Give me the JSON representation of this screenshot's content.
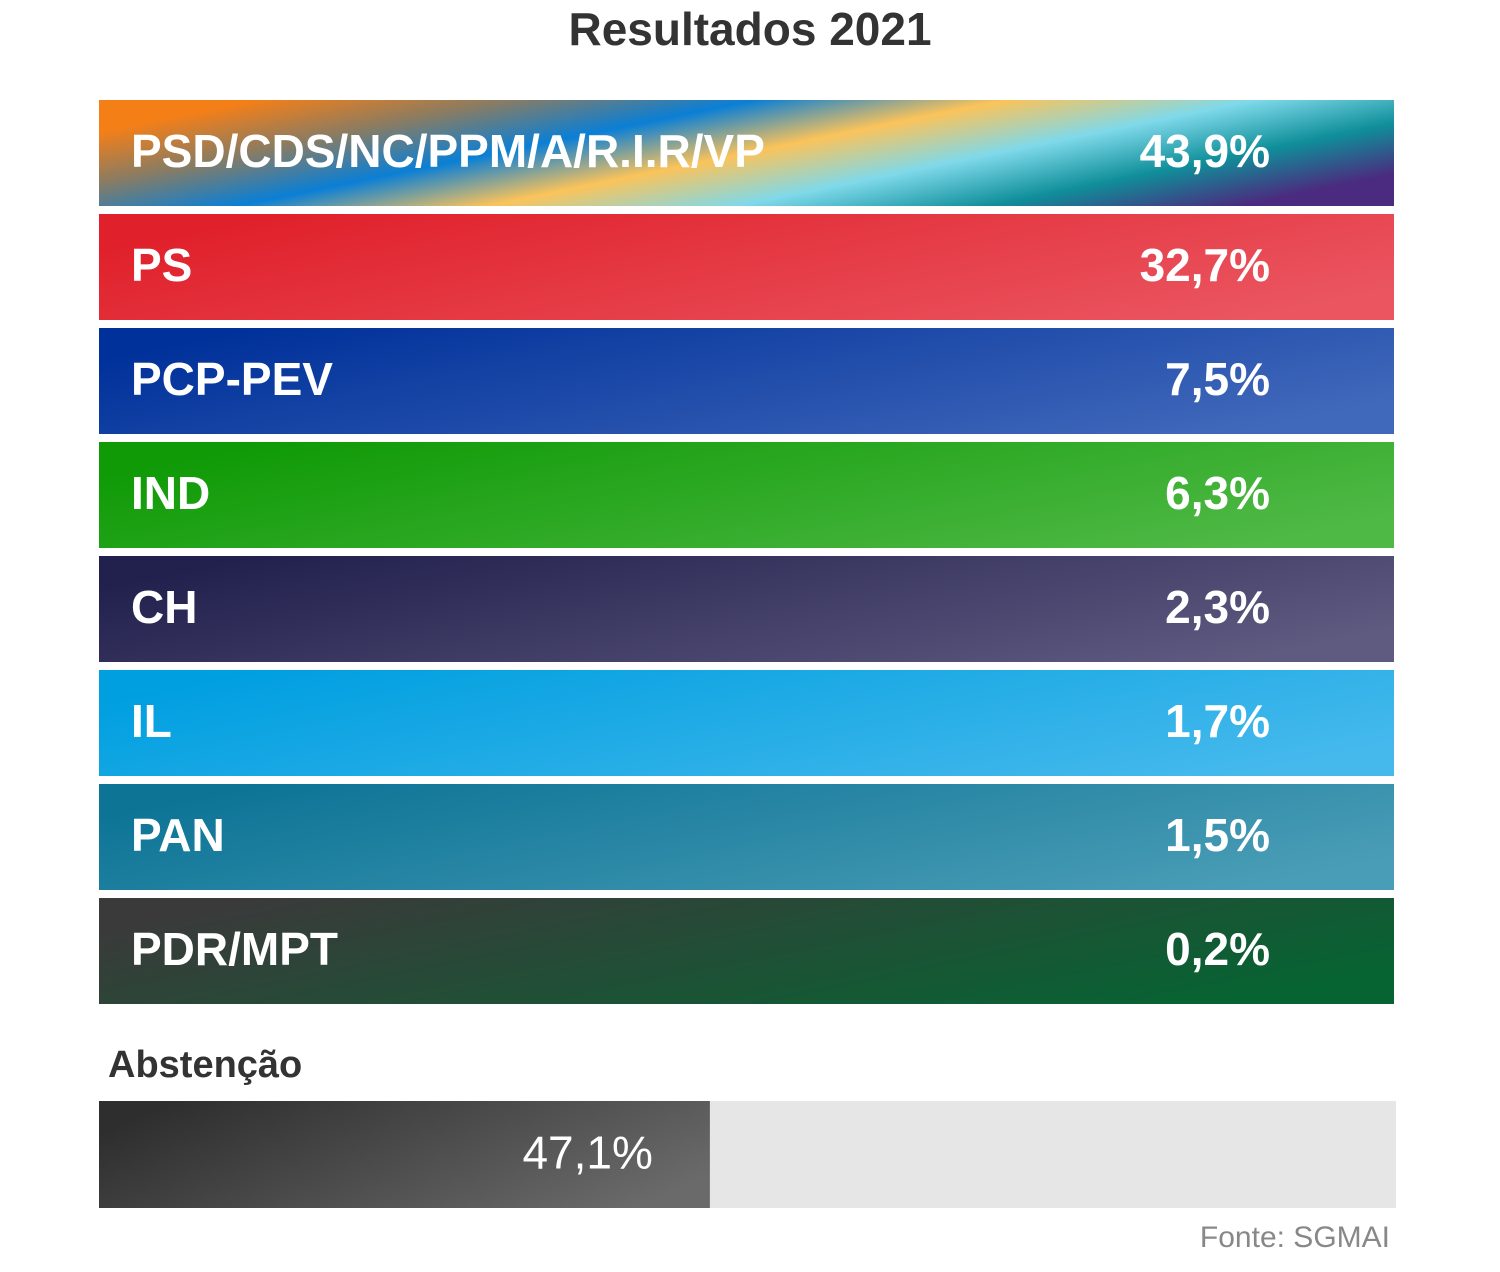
{
  "chart_data": {
    "type": "results",
    "title": "Resultados 2021",
    "rows": [
      {
        "party": "PSD/CDS/NC/PPM/A/R.I.R/VP",
        "value": "43,9%",
        "colors": [
          "#f57f17",
          "#8a7c62",
          "#0a7fd6",
          "#fbc35a",
          "#7fd9ea",
          "#0f8f9a",
          "#4b2b7f"
        ]
      },
      {
        "party": "PS",
        "value": "32,7%",
        "colors": [
          "#e0202a",
          "#ea5560"
        ]
      },
      {
        "party": "PCP-PEV",
        "value": "7,5%",
        "colors": [
          "#00319a",
          "#4169bb"
        ]
      },
      {
        "party": "IND",
        "value": "6,3%",
        "colors": [
          "#0f9a06",
          "#4fb946"
        ]
      },
      {
        "party": "CH",
        "value": "2,3%",
        "colors": [
          "#22204d",
          "#5e5a80"
        ]
      },
      {
        "party": "IL",
        "value": "1,7%",
        "colors": [
          "#009fe0",
          "#45b9ec"
        ]
      },
      {
        "party": "PAN",
        "value": "1,5%",
        "colors": [
          "#0d7496",
          "#4a9db6"
        ]
      },
      {
        "party": "PDR/MPT",
        "value": "0,2%",
        "colors": [
          "#3a3a3a",
          "#066432"
        ]
      }
    ],
    "abstention": {
      "label": "Abstenção",
      "value": 47.1,
      "value_label": "47,1%",
      "xlim": [
        0,
        100
      ],
      "colors": [
        "#2e2e2e",
        "#6a6a6a"
      ],
      "track_color": "#e6e6e6"
    },
    "source": "Fonte: SGMAI"
  }
}
